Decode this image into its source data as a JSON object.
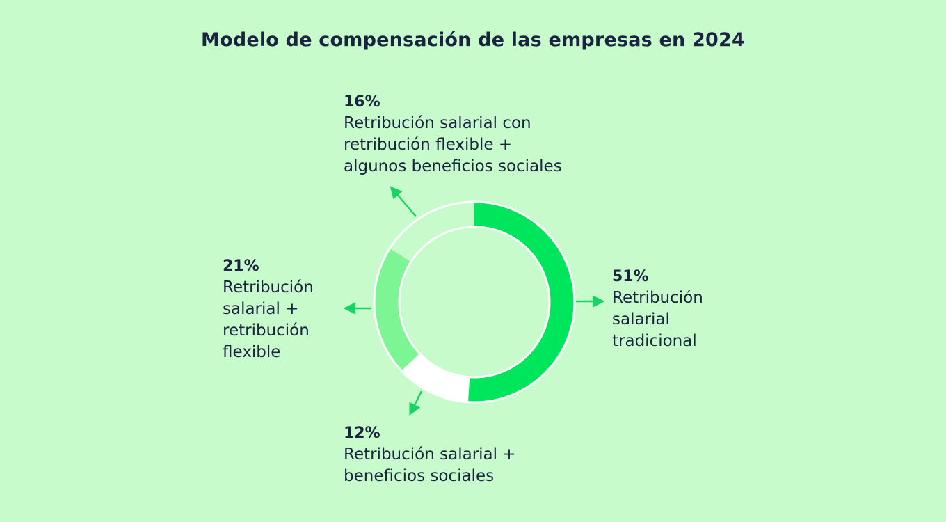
{
  "title": "Modelo de compensación de las empresas en 2024",
  "colors": {
    "background": "#c8fbcb",
    "text": "#1a2340",
    "arrow": "#19d463",
    "ring_outline": "#ffffff"
  },
  "chart_data": {
    "type": "pie",
    "variant": "donut",
    "title": "Modelo de compensación de las empresas en 2024",
    "slices": [
      {
        "value": 51,
        "percent_label": "51%",
        "label": "Retribución\nsalarial\ntradicional",
        "color": "#00e65c"
      },
      {
        "value": 12,
        "percent_label": "12%",
        "label": "Retribución salarial +\nbeneficios sociales",
        "color": "#ffffff"
      },
      {
        "value": 21,
        "percent_label": "21%",
        "label": "Retribución\nsalarial +\nretribución\nflexible",
        "color": "#7ef594"
      },
      {
        "value": 16,
        "percent_label": "16%",
        "label": "Retribución salarial con\nretribución flexible +\nalgunos beneficios sociales",
        "color": "#c8fbcb"
      }
    ],
    "start_angle": "12 o'clock",
    "direction": "clockwise",
    "legend": "none (labels placed beside slices with arrows)"
  }
}
